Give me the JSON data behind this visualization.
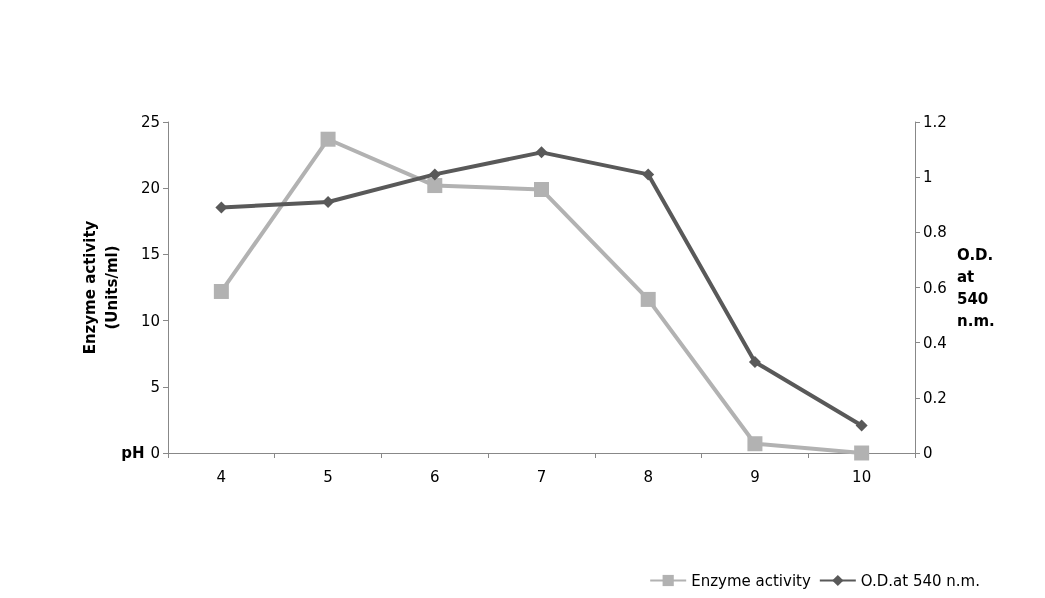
{
  "chart_data": {
    "type": "line",
    "xlabel": "pH",
    "ylabel": "Enzyme activity (Units/ml)",
    "y2label": "O.D. at 540 n.m.",
    "categories": [
      "4",
      "5",
      "6",
      "7",
      "8",
      "9",
      "10"
    ],
    "series": [
      {
        "name": "Enzyme activity",
        "color": "#b2b2b2",
        "marker": "square",
        "values": [
          12.2,
          23.7,
          20.2,
          19.9,
          11.6,
          0.7,
          0
        ]
      },
      {
        "name": "O.D.at 540 n.m.",
        "color": "#595959",
        "marker": "diamond",
        "axis": "y2",
        "values": [
          0.89,
          0.91,
          1.01,
          1.09,
          1.01,
          0.33,
          0.1
        ]
      }
    ],
    "ylim": [
      0,
      25
    ],
    "yticks": [
      0,
      5,
      10,
      15,
      20,
      25
    ],
    "y2lim": [
      0,
      1.2
    ],
    "y2ticks": [
      0,
      0.2,
      0.4,
      0.6,
      0.8,
      1,
      1.2
    ],
    "grid": false,
    "legend": "bottom right"
  }
}
